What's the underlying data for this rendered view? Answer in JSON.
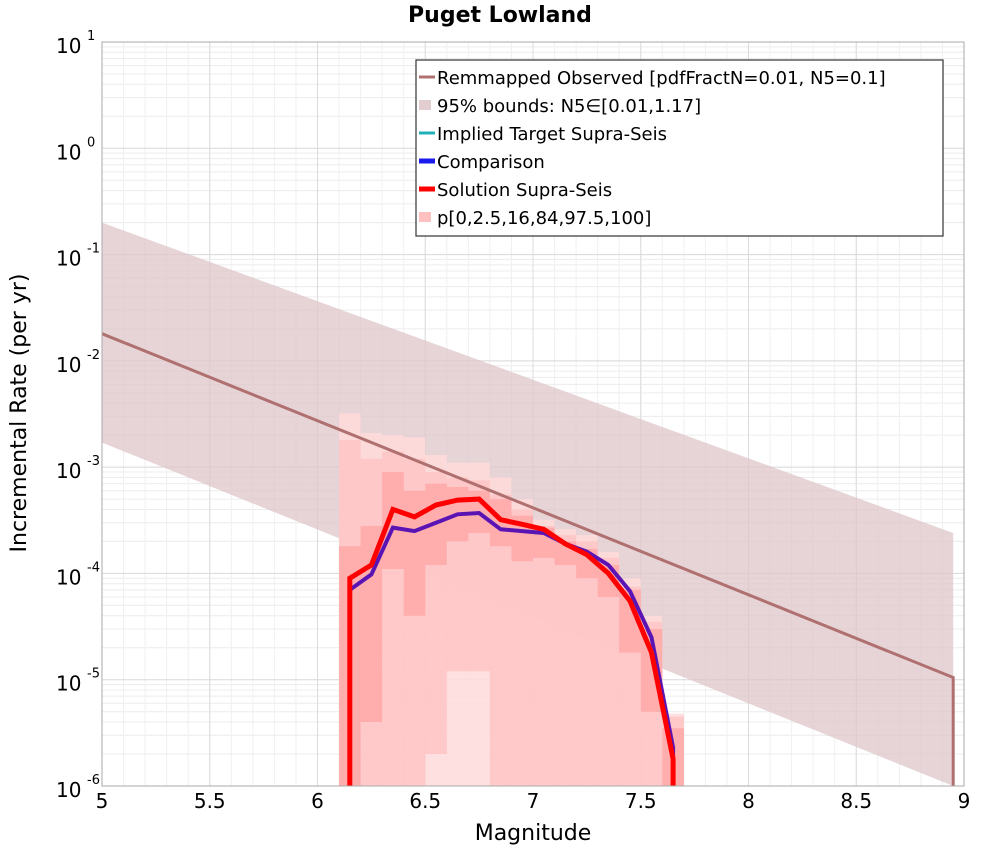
{
  "chart_data": {
    "type": "line",
    "title": "Puget Lowland",
    "xlabel": "Magnitude",
    "ylabel": "Incremental Rate (per yr)",
    "xlim": [
      5,
      9
    ],
    "ylim_log10": [
      -6,
      1
    ],
    "y_scale": "log",
    "grid": true,
    "legend_position": "top-right",
    "x_ticks": [
      {
        "value": 5,
        "label": "5"
      },
      {
        "value": 5.5,
        "label": "5.5"
      },
      {
        "value": 6,
        "label": "6"
      },
      {
        "value": 6.5,
        "label": "6.5"
      },
      {
        "value": 7,
        "label": "7"
      },
      {
        "value": 7.5,
        "label": "7.5"
      },
      {
        "value": 8,
        "label": "8"
      },
      {
        "value": 8.5,
        "label": "8.5"
      },
      {
        "value": 9,
        "label": "9"
      }
    ],
    "y_ticks": [
      {
        "exp": 1,
        "base": "10",
        "sup": "1"
      },
      {
        "exp": 0,
        "base": "10",
        "sup": "0"
      },
      {
        "exp": -1,
        "base": "10",
        "sup": "-1"
      },
      {
        "exp": -2,
        "base": "10",
        "sup": "-2"
      },
      {
        "exp": -3,
        "base": "10",
        "sup": "-3"
      },
      {
        "exp": -4,
        "base": "10",
        "sup": "-4"
      },
      {
        "exp": -5,
        "base": "10",
        "sup": "-5"
      },
      {
        "exp": -6,
        "base": "10",
        "sup": "-6"
      }
    ],
    "legend": [
      {
        "label": "Remmapped Observed [pdfFractN=0.01, N5=0.1]",
        "color": "#b07070",
        "kind": "line",
        "width": 3
      },
      {
        "label": "95% bounds: N5∈[0.01,1.17]",
        "color": "#e2cdd0",
        "kind": "patch"
      },
      {
        "label": "Implied Target Supra-Seis",
        "color": "#20b0b8",
        "kind": "line",
        "width": 3
      },
      {
        "label": "Comparison",
        "color": "#1a1aee",
        "kind": "line",
        "width": 5
      },
      {
        "label": "Solution Supra-Seis",
        "color": "#ff0000",
        "kind": "line",
        "width": 5
      },
      {
        "label": "p[0,2.5,16,84,97.5,100]",
        "color": "#ffc0c0",
        "kind": "patch"
      }
    ],
    "bounds_95": {
      "color": "#ddc6ca",
      "x": [
        5.0,
        8.95
      ],
      "upper": [
        0.2,
        0.00024
      ],
      "lower": [
        0.0017,
        1e-06
      ]
    },
    "observed": {
      "color": "#b07070",
      "x": [
        5.0,
        8.95,
        8.95
      ],
      "y": [
        0.018,
        1.05e-05,
        1e-06
      ]
    },
    "percentile_bands": [
      {
        "name": "p0-p100",
        "color": "#ffdada",
        "x": [
          6.15,
          6.25,
          6.35,
          6.45,
          6.55,
          6.65,
          6.75,
          6.85,
          6.95,
          7.05,
          7.15,
          7.25,
          7.35,
          7.45,
          7.55,
          7.65
        ],
        "upper": [
          0.0032,
          0.0021,
          0.002,
          0.0019,
          0.0013,
          0.0011,
          0.0011,
          0.0008,
          0.0005,
          0.00032,
          0.00026,
          0.00023,
          0.00016,
          9e-05,
          4e-05,
          4.8e-06
        ],
        "lower": [
          1e-06,
          1e-06,
          1e-06,
          1e-06,
          1e-06,
          1e-06,
          1e-06,
          1e-06,
          1e-06,
          1e-06,
          1e-06,
          1e-06,
          1e-06,
          1e-06,
          1e-06,
          1e-06
        ]
      },
      {
        "name": "p2.5-p97.5",
        "color": "#ffc4c4",
        "x": [
          6.15,
          6.25,
          6.35,
          6.45,
          6.55,
          6.65,
          6.75,
          6.85,
          6.95,
          7.05,
          7.15,
          7.25,
          7.35,
          7.45,
          7.55,
          7.65
        ],
        "upper": [
          0.0018,
          0.0012,
          0.0014,
          0.0012,
          0.0009,
          0.0008,
          0.00075,
          0.00055,
          0.0004,
          0.00028,
          0.00023,
          0.0002,
          0.00014,
          7.5e-05,
          3.5e-05,
          4.5e-06
        ],
        "lower": [
          1e-06,
          1e-06,
          1e-06,
          1e-06,
          2e-06,
          1.2e-05,
          1.2e-05,
          1e-06,
          1e-06,
          1e-06,
          1e-06,
          1e-06,
          1e-06,
          1e-06,
          1e-06,
          1e-06
        ]
      },
      {
        "name": "p16-p84",
        "color": "#ffa8a8",
        "x": [
          6.15,
          6.25,
          6.35,
          6.45,
          6.55,
          6.65,
          6.75,
          6.85,
          6.95,
          7.05,
          7.15,
          7.25,
          7.35,
          7.45,
          7.55,
          7.65
        ],
        "upper": [
          0.00018,
          0.00028,
          0.0009,
          0.0006,
          0.0007,
          0.00065,
          0.0006,
          0.0005,
          0.00035,
          0.00027,
          0.0002,
          0.00017,
          0.00012,
          7e-05,
          3e-05,
          3.5e-06
        ],
        "lower": [
          1e-06,
          4e-06,
          0.00011,
          4e-05,
          0.00012,
          0.0002,
          0.00024,
          0.00018,
          0.00013,
          0.00014,
          0.00012,
          9e-05,
          6e-05,
          1.8e-05,
          5e-06,
          1e-06
        ]
      }
    ],
    "series": [
      {
        "name": "Comparison",
        "color": "#5a14b4",
        "width": 4,
        "x": [
          6.15,
          6.15,
          6.25,
          6.35,
          6.45,
          6.55,
          6.65,
          6.75,
          6.85,
          6.95,
          7.05,
          7.15,
          7.25,
          7.35,
          7.45,
          7.55,
          7.65,
          7.65
        ],
        "y": [
          1e-06,
          7e-05,
          9.8e-05,
          0.00027,
          0.00025,
          0.0003,
          0.00036,
          0.00037,
          0.00026,
          0.00025,
          0.00024,
          0.00019,
          0.00016,
          0.00012,
          6.8e-05,
          2.5e-05,
          2.3e-06,
          1e-06
        ]
      },
      {
        "name": "Solution Supra-Seis",
        "color": "#ff0000",
        "width": 5,
        "x": [
          6.15,
          6.15,
          6.25,
          6.35,
          6.45,
          6.55,
          6.65,
          6.75,
          6.85,
          6.95,
          7.05,
          7.15,
          7.25,
          7.35,
          7.45,
          7.55,
          7.65,
          7.65
        ],
        "y": [
          1e-06,
          9e-05,
          0.00012,
          0.0004,
          0.00034,
          0.00044,
          0.00049,
          0.0005,
          0.00032,
          0.00029,
          0.00026,
          0.00019,
          0.00015,
          0.0001,
          5.5e-05,
          1.8e-05,
          1.8e-06,
          1e-06
        ]
      }
    ]
  }
}
